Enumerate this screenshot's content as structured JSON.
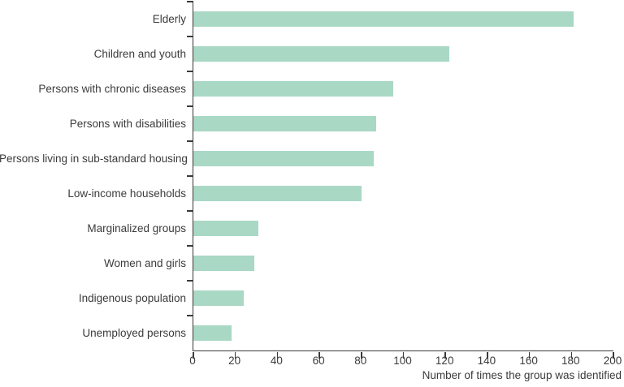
{
  "chart_data": {
    "type": "bar",
    "orientation": "horizontal",
    "title": "",
    "categories": [
      "Elderly",
      "Children and youth",
      "Persons with chronic diseases",
      "Persons with disabilities",
      "Persons living in sub-standard housing",
      "Low-income households",
      "Marginalized groups",
      "Women and girls",
      "Indigenous population",
      "Unemployed persons"
    ],
    "values": [
      181,
      122,
      95,
      87,
      86,
      80,
      31,
      29,
      24,
      18
    ],
    "xlabel": "Number of times the group was identified",
    "ylabel": "",
    "xlim": [
      0,
      200
    ],
    "xticks": [
      0,
      20,
      40,
      60,
      80,
      100,
      120,
      140,
      160,
      180,
      200
    ],
    "grid": false,
    "legend": "none",
    "bar_color": "#a9d8c5",
    "axis_color": "#3a3a3a",
    "text_color": "#3b3b3b"
  }
}
